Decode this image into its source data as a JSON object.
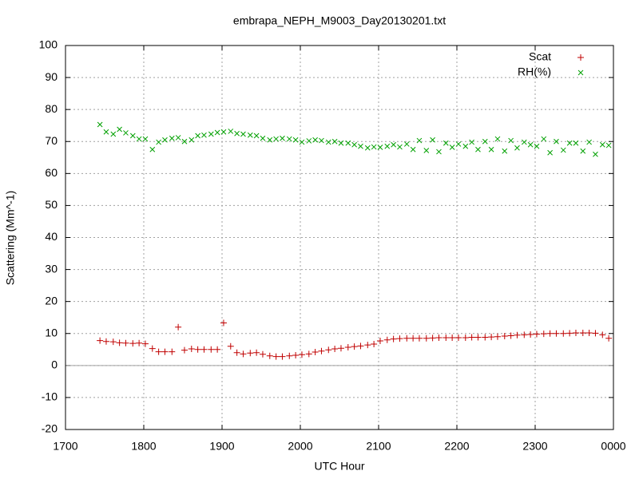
{
  "chart_data": {
    "type": "scatter",
    "title": "embrapa_NEPH_M9003_Day20130201.txt",
    "x_label": "UTC Hour",
    "y_label": "Scattering (Mm^-1)",
    "xlim": [
      1700,
      2400
    ],
    "xticks": [
      1700,
      1800,
      1900,
      2000,
      2100,
      2200,
      2300,
      {
        "value": 2400,
        "label": "0000"
      }
    ],
    "ylim": [
      -20,
      100
    ],
    "yticks": [
      -20,
      -10,
      0,
      10,
      20,
      30,
      40,
      50,
      60,
      70,
      80,
      90,
      100
    ],
    "grid": true,
    "zero_line": true,
    "legend": "top-right",
    "x": [
      1744,
      1752,
      1761,
      1769,
      1777,
      1786,
      1794,
      1802,
      1811,
      1819,
      1827,
      1836,
      1844,
      1852,
      1861,
      1869,
      1877,
      1886,
      1894,
      1902,
      1911,
      1919,
      1927,
      1936,
      1944,
      1952,
      1961,
      1969,
      1977,
      1986,
      1994,
      2002,
      2011,
      2019,
      2027,
      2036,
      2044,
      2052,
      2061,
      2069,
      2077,
      2086,
      2094,
      2102,
      2111,
      2119,
      2127,
      2136,
      2144,
      2152,
      2161,
      2169,
      2177,
      2186,
      2194,
      2202,
      2211,
      2219,
      2227,
      2236,
      2244,
      2252,
      2261,
      2269,
      2277,
      2286,
      2294,
      2302,
      2311,
      2319,
      2327,
      2336,
      2344,
      2352,
      2361,
      2369,
      2377,
      2386,
      2394
    ],
    "series": [
      {
        "name": "Scat",
        "color": "#c00000",
        "marker": "+",
        "values": [
          7.8,
          7.5,
          7.4,
          7.1,
          7.0,
          6.9,
          7.0,
          6.8,
          5.3,
          4.3,
          4.3,
          4.3,
          12.0,
          4.8,
          5.2,
          5.0,
          5.0,
          5.0,
          5.0,
          13.3,
          6.0,
          4.0,
          3.6,
          3.9,
          4.0,
          3.5,
          3.0,
          2.8,
          2.8,
          3.0,
          3.2,
          3.4,
          3.6,
          4.2,
          4.5,
          4.9,
          5.2,
          5.4,
          5.7,
          5.9,
          6.1,
          6.4,
          6.7,
          7.7,
          8.0,
          8.3,
          8.4,
          8.5,
          8.5,
          8.5,
          8.5,
          8.6,
          8.7,
          8.7,
          8.7,
          8.7,
          8.7,
          8.8,
          8.8,
          8.8,
          8.9,
          9.0,
          9.2,
          9.3,
          9.5,
          9.6,
          9.7,
          9.8,
          9.9,
          10.0,
          10.0,
          10.0,
          10.1,
          10.2,
          10.2,
          10.2,
          10.1,
          9.6,
          8.5
        ]
      },
      {
        "name": "RH(%)",
        "color": "#00a000",
        "marker": "x",
        "values": [
          75.3,
          73,
          72.3,
          73.8,
          72.7,
          71.8,
          70.8,
          70.8,
          67.5,
          69.8,
          70.5,
          71,
          71.2,
          70,
          70.5,
          71.8,
          72,
          72.3,
          72.8,
          73,
          73.2,
          72.5,
          72.3,
          72,
          71.8,
          71,
          70.5,
          70.8,
          71,
          70.8,
          70.5,
          69.8,
          70.2,
          70.5,
          70.3,
          69.8,
          70,
          69.5,
          69.5,
          69,
          68.5,
          68,
          68.3,
          68.2,
          68.5,
          69,
          68.3,
          69.2,
          67.5,
          70.3,
          67.2,
          70.5,
          66.8,
          69.5,
          68.2,
          69.2,
          68.5,
          69.8,
          67.5,
          70,
          67.5,
          70.8,
          67,
          70.3,
          68,
          69.8,
          69,
          68.5,
          70.8,
          66.5,
          70,
          67.3,
          69.5,
          69.5,
          67,
          69.8,
          66,
          69,
          68.8
        ]
      }
    ]
  }
}
